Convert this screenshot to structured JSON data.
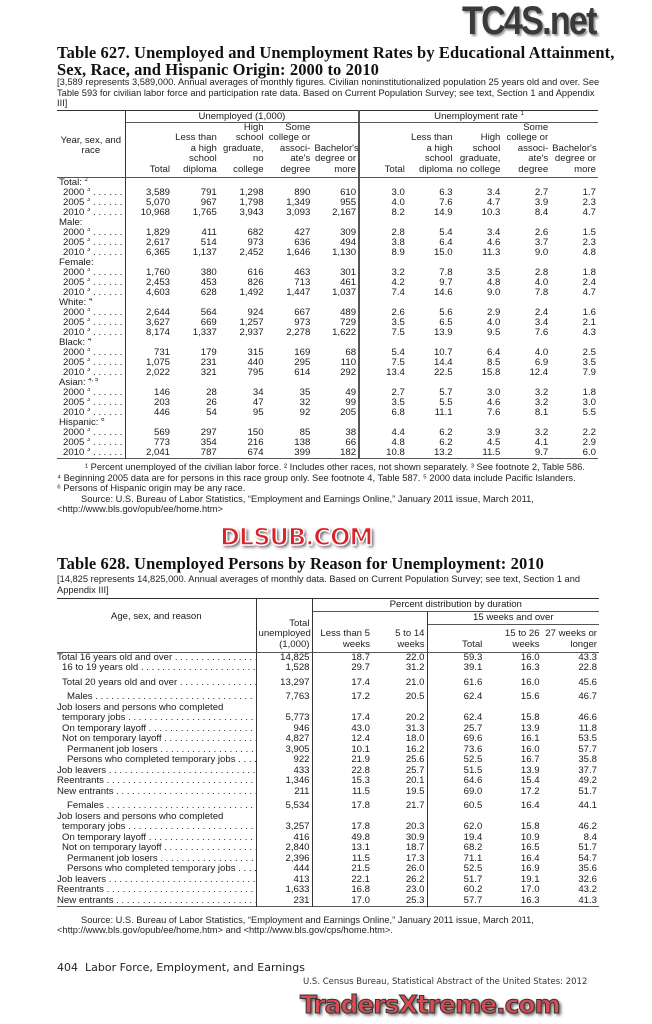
{
  "watermarks": {
    "top": "TC4S.net",
    "middle": "DLSUB.COM",
    "bottom": "TradersXtreme.com"
  },
  "t627": {
    "title": "Table 627. Unemployed and Unemployment Rates by Educational Attainment, Sex, Race, and Hispanic Origin: 2000 to 2010",
    "note": "[3,589 represents 3,589,000. Annual averages of monthly figures. Civilian noninstitutionalized population 25 years old and over. See Table 593 for civilian labor force and participation rate data. Based on Current Population Survey; see text, Section 1 and Appendix III]",
    "stub_header": "Year, sex, and race",
    "group1": "Unemployed (1,000)",
    "group2": "Unemployment rate",
    "group2_sup": "1",
    "columns": [
      "Total",
      "Less than a high school diploma",
      "High school graduate, no college",
      "Some college or associ-ate's degree",
      "Bachelor's degree or more"
    ],
    "groups": [
      {
        "label": "Total:",
        "sup": "2",
        "rows": [
          {
            "year": "2000",
            "sup": "3",
            "v": [
              "3,589",
              "791",
              "1,298",
              "890",
              "610",
              "3.0",
              "6.3",
              "3.4",
              "2.7",
              "1.7"
            ]
          },
          {
            "year": "2005",
            "sup": "3",
            "v": [
              "5,070",
              "967",
              "1,798",
              "1,349",
              "955",
              "4.0",
              "7.6",
              "4.7",
              "3.9",
              "2.3"
            ]
          },
          {
            "year": "2010",
            "sup": "3",
            "v": [
              "10,968",
              "1,765",
              "3,943",
              "3,093",
              "2,167",
              "8.2",
              "14.9",
              "10.3",
              "8.4",
              "4.7"
            ]
          }
        ]
      },
      {
        "label": "Male:",
        "sup": "",
        "rows": [
          {
            "year": "2000",
            "sup": "3",
            "v": [
              "1,829",
              "411",
              "682",
              "427",
              "309",
              "2.8",
              "5.4",
              "3.4",
              "2.6",
              "1.5"
            ]
          },
          {
            "year": "2005",
            "sup": "3",
            "v": [
              "2,617",
              "514",
              "973",
              "636",
              "494",
              "3.8",
              "6.4",
              "4.6",
              "3.7",
              "2.3"
            ]
          },
          {
            "year": "2010",
            "sup": "3",
            "v": [
              "6,365",
              "1,137",
              "2,452",
              "1,646",
              "1,130",
              "8.9",
              "15.0",
              "11.3",
              "9.0",
              "4.8"
            ]
          }
        ]
      },
      {
        "label": "Female:",
        "sup": "",
        "rows": [
          {
            "year": "2000",
            "sup": "3",
            "v": [
              "1,760",
              "380",
              "616",
              "463",
              "301",
              "3.2",
              "7.8",
              "3.5",
              "2.8",
              "1.8"
            ]
          },
          {
            "year": "2005",
            "sup": "3",
            "v": [
              "2,453",
              "453",
              "826",
              "713",
              "461",
              "4.2",
              "9.7",
              "4.8",
              "4.0",
              "2.4"
            ]
          },
          {
            "year": "2010",
            "sup": "3",
            "v": [
              "4,603",
              "628",
              "1,492",
              "1,447",
              "1,037",
              "7.4",
              "14.6",
              "9.0",
              "7.8",
              "4.7"
            ]
          }
        ]
      },
      {
        "label": "White:",
        "sup": "4",
        "rows": [
          {
            "year": "2000",
            "sup": "3",
            "v": [
              "2,644",
              "564",
              "924",
              "667",
              "489",
              "2.6",
              "5.6",
              "2.9",
              "2.4",
              "1.6"
            ]
          },
          {
            "year": "2005",
            "sup": "3",
            "v": [
              "3,627",
              "669",
              "1,257",
              "973",
              "729",
              "3.5",
              "6.5",
              "4.0",
              "3.4",
              "2.1"
            ]
          },
          {
            "year": "2010",
            "sup": "3",
            "v": [
              "8,174",
              "1,337",
              "2,937",
              "2,278",
              "1,622",
              "7.5",
              "13.9",
              "9.5",
              "7.6",
              "4.3"
            ]
          }
        ]
      },
      {
        "label": "Black:",
        "sup": "4",
        "rows": [
          {
            "year": "2000",
            "sup": "3",
            "v": [
              "731",
              "179",
              "315",
              "169",
              "68",
              "5.4",
              "10.7",
              "6.4",
              "4.0",
              "2.5"
            ]
          },
          {
            "year": "2005",
            "sup": "3",
            "v": [
              "1,075",
              "231",
              "440",
              "295",
              "110",
              "7.5",
              "14.4",
              "8.5",
              "6.9",
              "3.5"
            ]
          },
          {
            "year": "2010",
            "sup": "3",
            "v": [
              "2,022",
              "321",
              "795",
              "614",
              "292",
              "13.4",
              "22.5",
              "15.8",
              "12.4",
              "7.9"
            ]
          }
        ]
      },
      {
        "label": "Asian:",
        "sup": "4, 5",
        "rows": [
          {
            "year": "2000",
            "sup": "3",
            "v": [
              "146",
              "28",
              "34",
              "35",
              "49",
              "2.7",
              "5.7",
              "3.0",
              "3.2",
              "1.8"
            ]
          },
          {
            "year": "2005",
            "sup": "3",
            "v": [
              "203",
              "26",
              "47",
              "32",
              "99",
              "3.5",
              "5.5",
              "4.6",
              "3.2",
              "3.0"
            ]
          },
          {
            "year": "2010",
            "sup": "3",
            "v": [
              "446",
              "54",
              "95",
              "92",
              "205",
              "6.8",
              "11.1",
              "7.6",
              "8.1",
              "5.5"
            ]
          }
        ]
      },
      {
        "label": "Hispanic:",
        "sup": "6",
        "rows": [
          {
            "year": "2000",
            "sup": "3",
            "v": [
              "569",
              "297",
              "150",
              "85",
              "38",
              "4.4",
              "6.2",
              "3.9",
              "3.2",
              "2.2"
            ]
          },
          {
            "year": "2005",
            "sup": "3",
            "v": [
              "773",
              "354",
              "216",
              "138",
              "66",
              "4.8",
              "6.2",
              "4.5",
              "4.1",
              "2.9"
            ]
          },
          {
            "year": "2010",
            "sup": "3",
            "v": [
              "2,041",
              "787",
              "674",
              "399",
              "182",
              "10.8",
              "13.2",
              "11.5",
              "9.7",
              "6.0"
            ]
          }
        ]
      }
    ],
    "footnotes": [
      "¹ Percent unemployed of the civilian labor force. ² Includes other races, not shown separately. ³ See footnote 2, Table 586.",
      "⁴ Beginning 2005 data are for persons in this race group only. See footnote 4, Table 587. ⁵ 2000 data include Pacific Islanders.",
      "⁶ Persons of Hispanic origin may be any race."
    ],
    "source_line1": "Source: U.S. Bureau of Labor Statistics, “Employment and Earnings Online,” January 2011 issue, March 2011,",
    "source_line2": "<http://www.bls.gov/opub/ee/home.htm>"
  },
  "t628": {
    "title": "Table 628. Unemployed Persons by Reason for Unemployment: 2010",
    "note": "[14,825 represents 14,825,000. Annual averages of monthly data. Based on Current Population Survey; see text, Section 1 and Appendix III]",
    "stub_header": "Age, sex, and reason",
    "total_header": "Total unemployed (1,000)",
    "dist_header": "Percent distribution by duration",
    "over15_header": "15 weeks and over",
    "columns": [
      "Less than 5 weeks",
      "5 to 14 weeks",
      "Total",
      "15 to 26 weeks",
      "27 weeks or longer"
    ],
    "rows": [
      {
        "label": "Total 16 years old and over",
        "indent": 0,
        "bold": true,
        "gap": false,
        "v": [
          "14,825",
          "18.7",
          "22.0",
          "59.3",
          "16.0",
          "43.3"
        ]
      },
      {
        "label": "16 to 19 years old",
        "indent": 1,
        "bold": false,
        "gap": false,
        "v": [
          "1,528",
          "29.7",
          "31.2",
          "39.1",
          "16.3",
          "22.8"
        ]
      },
      {
        "label": "Total 20 years old and over",
        "indent": 1,
        "bold": true,
        "gap": true,
        "v": [
          "13,297",
          "17.4",
          "21.0",
          "61.6",
          "16.0",
          "45.6"
        ]
      },
      {
        "label": "Males",
        "indent": 2,
        "bold": true,
        "gap": true,
        "v": [
          "7,763",
          "17.2",
          "20.5",
          "62.4",
          "15.6",
          "46.7"
        ]
      },
      {
        "label": "Job losers and persons who completed",
        "indent": 0,
        "bold": false,
        "gap": false,
        "nolead": true,
        "v": [
          "",
          "",
          "",
          "",
          "",
          ""
        ]
      },
      {
        "label": "temporary jobs",
        "indent": 1,
        "bold": false,
        "gap": false,
        "v": [
          "5,773",
          "17.4",
          "20.2",
          "62.4",
          "15.8",
          "46.6"
        ]
      },
      {
        "label": "On temporary layoff",
        "indent": 1,
        "bold": false,
        "gap": false,
        "v": [
          "946",
          "43.0",
          "31.3",
          "25.7",
          "13.9",
          "11.8"
        ]
      },
      {
        "label": "Not on temporary layoff",
        "indent": 1,
        "bold": false,
        "gap": false,
        "v": [
          "4,827",
          "12.4",
          "18.0",
          "69.6",
          "16.1",
          "53.5"
        ]
      },
      {
        "label": "Permanent job losers",
        "indent": 2,
        "bold": false,
        "gap": false,
        "v": [
          "3,905",
          "10.1",
          "16.2",
          "73.6",
          "16.0",
          "57.7"
        ]
      },
      {
        "label": "Persons who completed temporary jobs",
        "indent": 2,
        "bold": false,
        "gap": false,
        "v": [
          "922",
          "21.9",
          "25.6",
          "52.5",
          "16.7",
          "35.8"
        ]
      },
      {
        "label": "Job leavers",
        "indent": 0,
        "bold": false,
        "gap": false,
        "v": [
          "433",
          "22.8",
          "25.7",
          "51.5",
          "13.9",
          "37.7"
        ]
      },
      {
        "label": "Reentrants",
        "indent": 0,
        "bold": false,
        "gap": false,
        "v": [
          "1,346",
          "15.3",
          "20.1",
          "64.6",
          "15.4",
          "49.2"
        ]
      },
      {
        "label": "New entrants",
        "indent": 0,
        "bold": false,
        "gap": false,
        "v": [
          "211",
          "11.5",
          "19.5",
          "69.0",
          "17.2",
          "51.7"
        ]
      },
      {
        "label": "Females",
        "indent": 2,
        "bold": true,
        "gap": true,
        "v": [
          "5,534",
          "17.8",
          "21.7",
          "60.5",
          "16.4",
          "44.1"
        ]
      },
      {
        "label": "Job losers and persons who completed",
        "indent": 0,
        "bold": false,
        "gap": false,
        "nolead": true,
        "v": [
          "",
          "",
          "",
          "",
          "",
          ""
        ]
      },
      {
        "label": "temporary jobs",
        "indent": 1,
        "bold": false,
        "gap": false,
        "v": [
          "3,257",
          "17.8",
          "20.3",
          "62.0",
          "15.8",
          "46.2"
        ]
      },
      {
        "label": "On temporary layoff",
        "indent": 1,
        "bold": false,
        "gap": false,
        "v": [
          "416",
          "49.8",
          "30.9",
          "19.4",
          "10.9",
          "8.4"
        ]
      },
      {
        "label": "Not on temporary layoff",
        "indent": 1,
        "bold": false,
        "gap": false,
        "v": [
          "2,840",
          "13.1",
          "18.7",
          "68.2",
          "16.5",
          "51.7"
        ]
      },
      {
        "label": "Permanent job losers",
        "indent": 2,
        "bold": false,
        "gap": false,
        "v": [
          "2,396",
          "11.5",
          "17.3",
          "71.1",
          "16.4",
          "54.7"
        ]
      },
      {
        "label": "Persons who completed temporary jobs",
        "indent": 2,
        "bold": false,
        "gap": false,
        "v": [
          "444",
          "21.5",
          "26.0",
          "52.5",
          "16.9",
          "35.6"
        ]
      },
      {
        "label": "Job leavers",
        "indent": 0,
        "bold": false,
        "gap": false,
        "v": [
          "413",
          "22.1",
          "26.2",
          "51.7",
          "19.1",
          "32.6"
        ]
      },
      {
        "label": "Reentrants",
        "indent": 0,
        "bold": false,
        "gap": false,
        "v": [
          "1,633",
          "16.8",
          "23.0",
          "60.2",
          "17.0",
          "43.2"
        ]
      },
      {
        "label": "New entrants",
        "indent": 0,
        "bold": false,
        "gap": false,
        "v": [
          "231",
          "17.0",
          "25.3",
          "57.7",
          "16.3",
          "41.3"
        ]
      }
    ],
    "source_line1": "Source: U.S. Bureau of Labor Statistics, “Employment and Earnings Online,” January 2011 issue, March 2011,",
    "source_line2": "<http://www.bls.gov/opub/ee/home.htm> and <http://www.bls.gov/cps/home.htm>."
  },
  "footer": {
    "page": "404",
    "section": "Labor Force, Employment, and Earnings",
    "publication": "U.S. Census Bureau, Statistical Abstract of the United States: 2012"
  }
}
